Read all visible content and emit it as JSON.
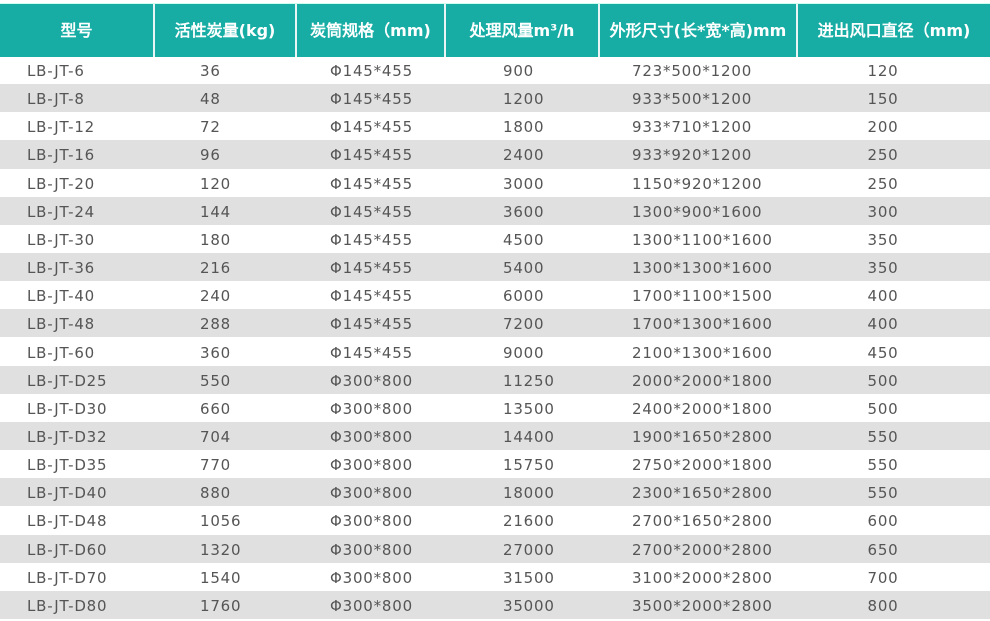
{
  "colors": {
    "header_bg": "#17ada4",
    "stripe": "#e0e0e0",
    "text": "#555555"
  },
  "headers": [
    "型号",
    "活性炭量(kg)",
    "炭筒规格（mm)",
    "处理风量m³/h",
    "外形尺寸(长*宽*高)mm",
    "进出风口直径（mm)"
  ],
  "rows": [
    [
      "LB-JT-6",
      "36",
      "Φ145*455",
      "900",
      "723*500*1200",
      "120"
    ],
    [
      "LB-JT-8",
      "48",
      "Φ145*455",
      "1200",
      "933*500*1200",
      "150"
    ],
    [
      "LB-JT-12",
      "72",
      "Φ145*455",
      "1800",
      "933*710*1200",
      "200"
    ],
    [
      "LB-JT-16",
      "96",
      "Φ145*455",
      "2400",
      "933*920*1200",
      "250"
    ],
    [
      "LB-JT-20",
      "120",
      "Φ145*455",
      "3000",
      "1150*920*1200",
      "250"
    ],
    [
      "LB-JT-24",
      "144",
      "Φ145*455",
      "3600",
      "1300*900*1600",
      "300"
    ],
    [
      "LB-JT-30",
      "180",
      "Φ145*455",
      "4500",
      "1300*1100*1600",
      "350"
    ],
    [
      "LB-JT-36",
      "216",
      "Φ145*455",
      "5400",
      "1300*1300*1600",
      "350"
    ],
    [
      "LB-JT-40",
      "240",
      "Φ145*455",
      "6000",
      "1700*1100*1500",
      "400"
    ],
    [
      "LB-JT-48",
      "288",
      "Φ145*455",
      "7200",
      "1700*1300*1600",
      "400"
    ],
    [
      "LB-JT-60",
      "360",
      "Φ145*455",
      "9000",
      "2100*1300*1600",
      "450"
    ],
    [
      "LB-JT-D25",
      "550",
      "Φ300*800",
      "11250",
      "2000*2000*1800",
      "500"
    ],
    [
      "LB-JT-D30",
      "660",
      "Φ300*800",
      "13500",
      "2400*2000*1800",
      "500"
    ],
    [
      "LB-JT-D32",
      "704",
      "Φ300*800",
      "14400",
      "1900*1650*2800",
      "550"
    ],
    [
      "LB-JT-D35",
      "770",
      "Φ300*800",
      "15750",
      "2750*2000*1800",
      "550"
    ],
    [
      "LB-JT-D40",
      "880",
      "Φ300*800",
      "18000",
      "2300*1650*2800",
      "550"
    ],
    [
      "LB-JT-D48",
      "1056",
      "Φ300*800",
      "21600",
      "2700*1650*2800",
      "600"
    ],
    [
      "LB-JT-D60",
      "1320",
      "Φ300*800",
      "27000",
      "2700*2000*2800",
      "650"
    ],
    [
      "LB-JT-D70",
      "1540",
      "Φ300*800",
      "31500",
      "3100*2000*2800",
      "700"
    ],
    [
      "LB-JT-D80",
      "1760",
      "Φ300*800",
      "35000",
      "3500*2000*2800",
      "800"
    ]
  ]
}
